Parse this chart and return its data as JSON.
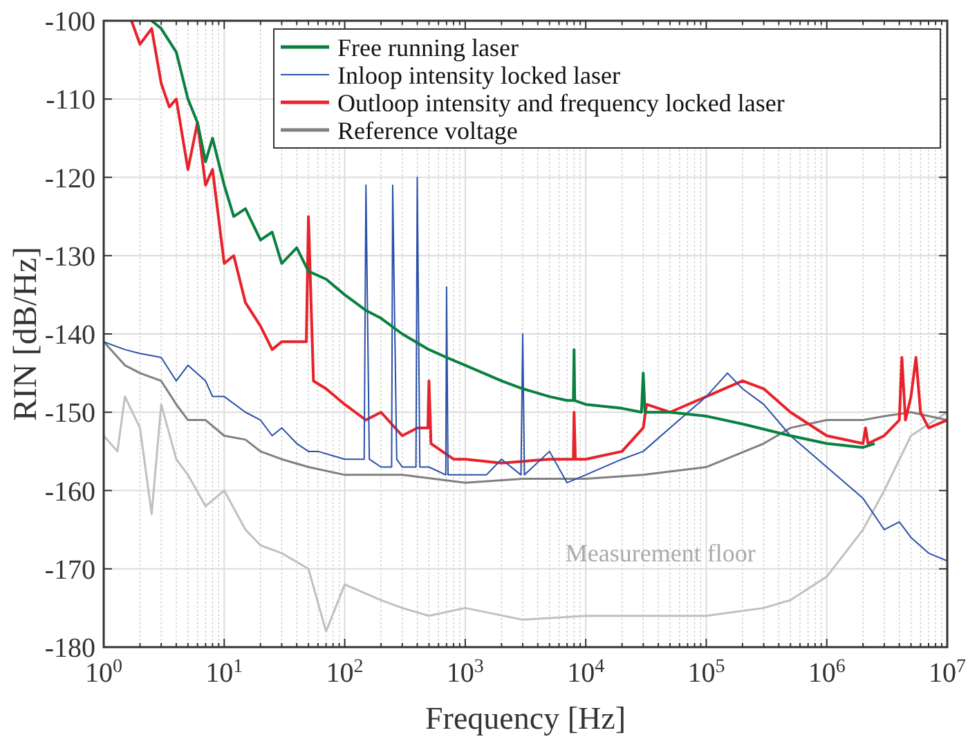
{
  "chart_data": {
    "type": "line",
    "xlabel": "Frequency [Hz]",
    "ylabel": "RIN [dB/Hz]",
    "log": "x",
    "grid": true,
    "legend": "top right",
    "xlim": [
      1,
      10000000
    ],
    "ylim": [
      -180,
      -100
    ],
    "xticks": [
      {
        "value": 1,
        "label": "10$^{0}$"
      },
      {
        "value": 10,
        "label": "10$^{1}$"
      },
      {
        "value": 100,
        "label": "10$^{2}$"
      },
      {
        "value": 1000,
        "label": "10$^{3}$"
      },
      {
        "value": 10000,
        "label": "10$^{4}$"
      },
      {
        "value": 100000,
        "label": "10$^{5}$"
      },
      {
        "value": 1000000,
        "label": "10$^{6}$"
      },
      {
        "value": 10000000,
        "label": "10$^{7}$"
      }
    ],
    "yticks": [
      -180,
      -170,
      -160,
      -150,
      -140,
      -130,
      -120,
      -110,
      -100
    ],
    "annotations": [
      "Measurement floor"
    ],
    "series": [
      {
        "name": "Free running laser",
        "color": "#0a8040",
        "x": [
          2.5,
          3,
          4,
          5,
          6,
          7,
          8,
          10,
          12,
          15,
          20,
          25,
          30,
          40,
          50,
          70,
          100,
          150,
          200,
          300,
          500,
          700,
          1000,
          2000,
          3000,
          5000,
          7000,
          7900,
          8000,
          8100,
          10000,
          20000,
          29000,
          30000,
          31000,
          50000,
          100000,
          200000,
          500000,
          1000000,
          2000000,
          2500000
        ],
        "values": [
          -100,
          -101,
          -104,
          -110,
          -113,
          -118,
          -115,
          -121,
          -125,
          -124,
          -128,
          -127,
          -131,
          -129,
          -132,
          -133,
          -135,
          -137,
          -138,
          -140,
          -142,
          -143,
          -144,
          -146,
          -147,
          -148,
          -148.5,
          -148.5,
          -142,
          -148.5,
          -149,
          -149.5,
          -150,
          -145,
          -150,
          -150,
          -150.5,
          -151.5,
          -153,
          -154,
          -154.5,
          -154
        ]
      },
      {
        "name": "Inloop intensity locked laser",
        "color": "#2a4fa8",
        "x": [
          1,
          1.5,
          2,
          3,
          4,
          5,
          7,
          8,
          10,
          15,
          20,
          25,
          30,
          40,
          50,
          60,
          100,
          145,
          150,
          160,
          200,
          245,
          250,
          270,
          300,
          390,
          400,
          420,
          500,
          690,
          700,
          720,
          1000,
          1500,
          2000,
          2900,
          3000,
          3100,
          5000,
          7000,
          10000,
          20000,
          30000,
          50000,
          100000,
          150000,
          200000,
          300000,
          500000,
          1000000,
          2000000,
          3000000,
          4000000,
          5000000,
          7000000,
          10000000
        ],
        "values": [
          -141,
          -142,
          -142.5,
          -143,
          -146,
          -144,
          -146,
          -148,
          -148,
          -150,
          -151,
          -153,
          -152,
          -154,
          -155,
          -155,
          -156,
          -156,
          -121,
          -156,
          -157,
          -157,
          -121,
          -156,
          -157,
          -157,
          -120,
          -157,
          -157,
          -158,
          -134,
          -158,
          -158,
          -158,
          -156,
          -158,
          -140,
          -158,
          -155,
          -159,
          -158,
          -156,
          -155,
          -152,
          -148,
          -145,
          -147,
          -149,
          -153,
          -157,
          -161,
          -165,
          -164,
          -166,
          -168,
          -169
        ]
      },
      {
        "name": "Outloop intensity and frequency locked laser",
        "color": "#e8222a",
        "x": [
          1.7,
          2,
          2.5,
          3,
          3.5,
          4,
          5,
          6,
          7,
          8,
          10,
          12,
          15,
          20,
          25,
          30,
          40,
          48,
          50,
          55,
          70,
          100,
          150,
          200,
          300,
          400,
          490,
          500,
          520,
          800,
          1000,
          2000,
          5000,
          7900,
          8000,
          8200,
          10000,
          20000,
          30000,
          32000,
          50000,
          100000,
          200000,
          300000,
          500000,
          1000000,
          2000000,
          2100000,
          2200000,
          3000000,
          4000000,
          4200000,
          4500000,
          5000000,
          5500000,
          6000000,
          7000000,
          10000000
        ],
        "values": [
          -100,
          -103,
          -101,
          -108,
          -111,
          -110,
          -119,
          -113,
          -121,
          -119,
          -131,
          -130,
          -136,
          -139,
          -142,
          -141,
          -141,
          -141,
          -125,
          -146,
          -147,
          -149,
          -151,
          -150,
          -153,
          -152,
          -152,
          -146,
          -154,
          -156,
          -156,
          -156.5,
          -156,
          -156,
          -150,
          -156,
          -156,
          -155,
          -152,
          -149,
          -150,
          -148,
          -146,
          -147,
          -150,
          -153,
          -154,
          -152,
          -154,
          -153,
          -151,
          -143,
          -151,
          -148,
          -143,
          -150,
          -152,
          -151
        ]
      },
      {
        "name": "Reference voltage",
        "color": "#808080",
        "x": [
          1,
          1.5,
          2,
          3,
          4,
          5,
          7,
          10,
          15,
          20,
          30,
          50,
          100,
          300,
          1000,
          3000,
          10000,
          30000,
          100000,
          300000,
          500000,
          1000000,
          2000000,
          3000000,
          5000000,
          10000000
        ],
        "values": [
          -141,
          -144,
          -145,
          -146,
          -149,
          -151,
          -151,
          -153,
          -153.5,
          -155,
          -156,
          -157,
          -158,
          -158,
          -159,
          -158.5,
          -158.5,
          -158,
          -157,
          -154,
          -152,
          -151,
          -151,
          -150.5,
          -150,
          -151
        ]
      },
      {
        "color": "#c0c0c0",
        "x": [
          1,
          1.3,
          1.5,
          2,
          2.5,
          3,
          4,
          5,
          7,
          10,
          15,
          20,
          30,
          50,
          70,
          100,
          200,
          300,
          500,
          1000,
          3000,
          10000,
          100000,
          300000,
          500000,
          1000000,
          2000000,
          3000000,
          5000000,
          10000000
        ],
        "values": [
          -153,
          -155,
          -148,
          -152,
          -163,
          -149,
          -156,
          -158,
          -162,
          -160,
          -165,
          -167,
          -168,
          -170,
          -178,
          -172,
          -174,
          -175,
          -176,
          -175,
          -176.5,
          -176,
          -176,
          -175,
          -174,
          -171,
          -165,
          -160,
          -153,
          -150
        ]
      }
    ]
  }
}
